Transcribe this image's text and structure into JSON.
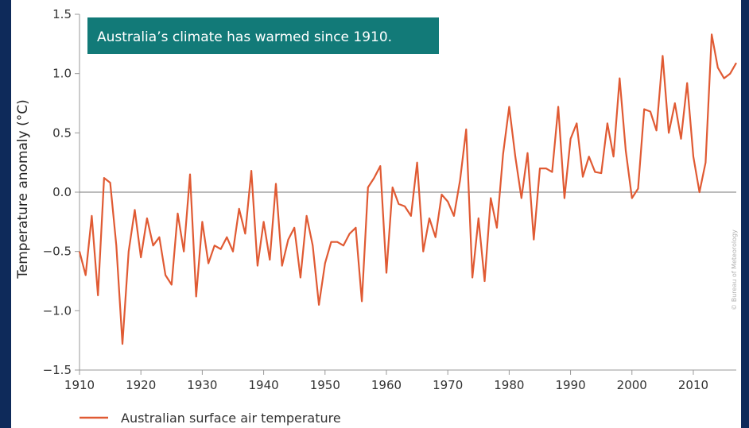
{
  "chart_data": {
    "type": "line",
    "title": "",
    "annotation": "Australia’s climate has warmed since 1910.",
    "xlabel": "",
    "ylabel": "Temperature anomaly (°C)",
    "xlim": [
      1910,
      2017
    ],
    "ylim": [
      -1.5,
      1.5
    ],
    "x_ticks": [
      1910,
      1920,
      1930,
      1940,
      1950,
      1960,
      1970,
      1980,
      1990,
      2000,
      2010
    ],
    "y_ticks": [
      -1.5,
      -1.0,
      -0.5,
      0.0,
      0.5,
      1.0,
      1.5
    ],
    "y_tick_labels": [
      "−1.5",
      "−1.0",
      "−0.5",
      "0.0",
      "0.5",
      "1.0",
      "1.5"
    ],
    "zero_line": true,
    "legend_position": "bottom-left",
    "series": [
      {
        "name": "Australian surface air temperature",
        "color": "#e05a33",
        "x": [
          1910,
          1911,
          1912,
          1913,
          1914,
          1915,
          1916,
          1917,
          1918,
          1919,
          1920,
          1921,
          1922,
          1923,
          1924,
          1925,
          1926,
          1927,
          1928,
          1929,
          1930,
          1931,
          1932,
          1933,
          1934,
          1935,
          1936,
          1937,
          1938,
          1939,
          1940,
          1941,
          1942,
          1943,
          1944,
          1945,
          1946,
          1947,
          1948,
          1949,
          1950,
          1951,
          1952,
          1953,
          1954,
          1955,
          1956,
          1957,
          1958,
          1959,
          1960,
          1961,
          1962,
          1963,
          1964,
          1965,
          1966,
          1967,
          1968,
          1969,
          1970,
          1971,
          1972,
          1973,
          1974,
          1975,
          1976,
          1977,
          1978,
          1979,
          1980,
          1981,
          1982,
          1983,
          1984,
          1985,
          1986,
          1987,
          1988,
          1989,
          1990,
          1991,
          1992,
          1993,
          1994,
          1995,
          1996,
          1997,
          1998,
          1999,
          2000,
          2001,
          2002,
          2003,
          2004,
          2005,
          2006,
          2007,
          2008,
          2009,
          2010,
          2011,
          2012,
          2013,
          2014,
          2015,
          2016,
          2017
        ],
        "y": [
          -0.5,
          -0.7,
          -0.2,
          -0.87,
          0.12,
          0.08,
          -0.45,
          -1.28,
          -0.5,
          -0.15,
          -0.55,
          -0.22,
          -0.45,
          -0.38,
          -0.7,
          -0.78,
          -0.18,
          -0.5,
          0.15,
          -0.88,
          -0.25,
          -0.6,
          -0.45,
          -0.48,
          -0.38,
          -0.5,
          -0.14,
          -0.35,
          0.18,
          -0.62,
          -0.25,
          -0.57,
          0.07,
          -0.62,
          -0.4,
          -0.3,
          -0.72,
          -0.2,
          -0.45,
          -0.95,
          -0.6,
          -0.42,
          -0.42,
          -0.45,
          -0.35,
          -0.3,
          -0.92,
          0.04,
          0.12,
          0.22,
          -0.68,
          0.04,
          -0.1,
          -0.12,
          -0.2,
          0.25,
          -0.5,
          -0.22,
          -0.38,
          -0.02,
          -0.08,
          -0.2,
          0.1,
          0.53,
          -0.72,
          -0.22,
          -0.75,
          -0.05,
          -0.3,
          0.32,
          0.72,
          0.3,
          -0.05,
          0.33,
          -0.4,
          0.2,
          0.2,
          0.17,
          0.72,
          -0.05,
          0.45,
          0.58,
          0.13,
          0.3,
          0.17,
          0.16,
          0.58,
          0.3,
          0.96,
          0.35,
          -0.05,
          0.03,
          0.7,
          0.68,
          0.52,
          1.15,
          0.5,
          0.75,
          0.45,
          0.92,
          0.3,
          0.0,
          0.25,
          1.33,
          1.05,
          0.96,
          1.0,
          1.09
        ]
      }
    ],
    "source_note": "© Bureau of Meteorology"
  }
}
